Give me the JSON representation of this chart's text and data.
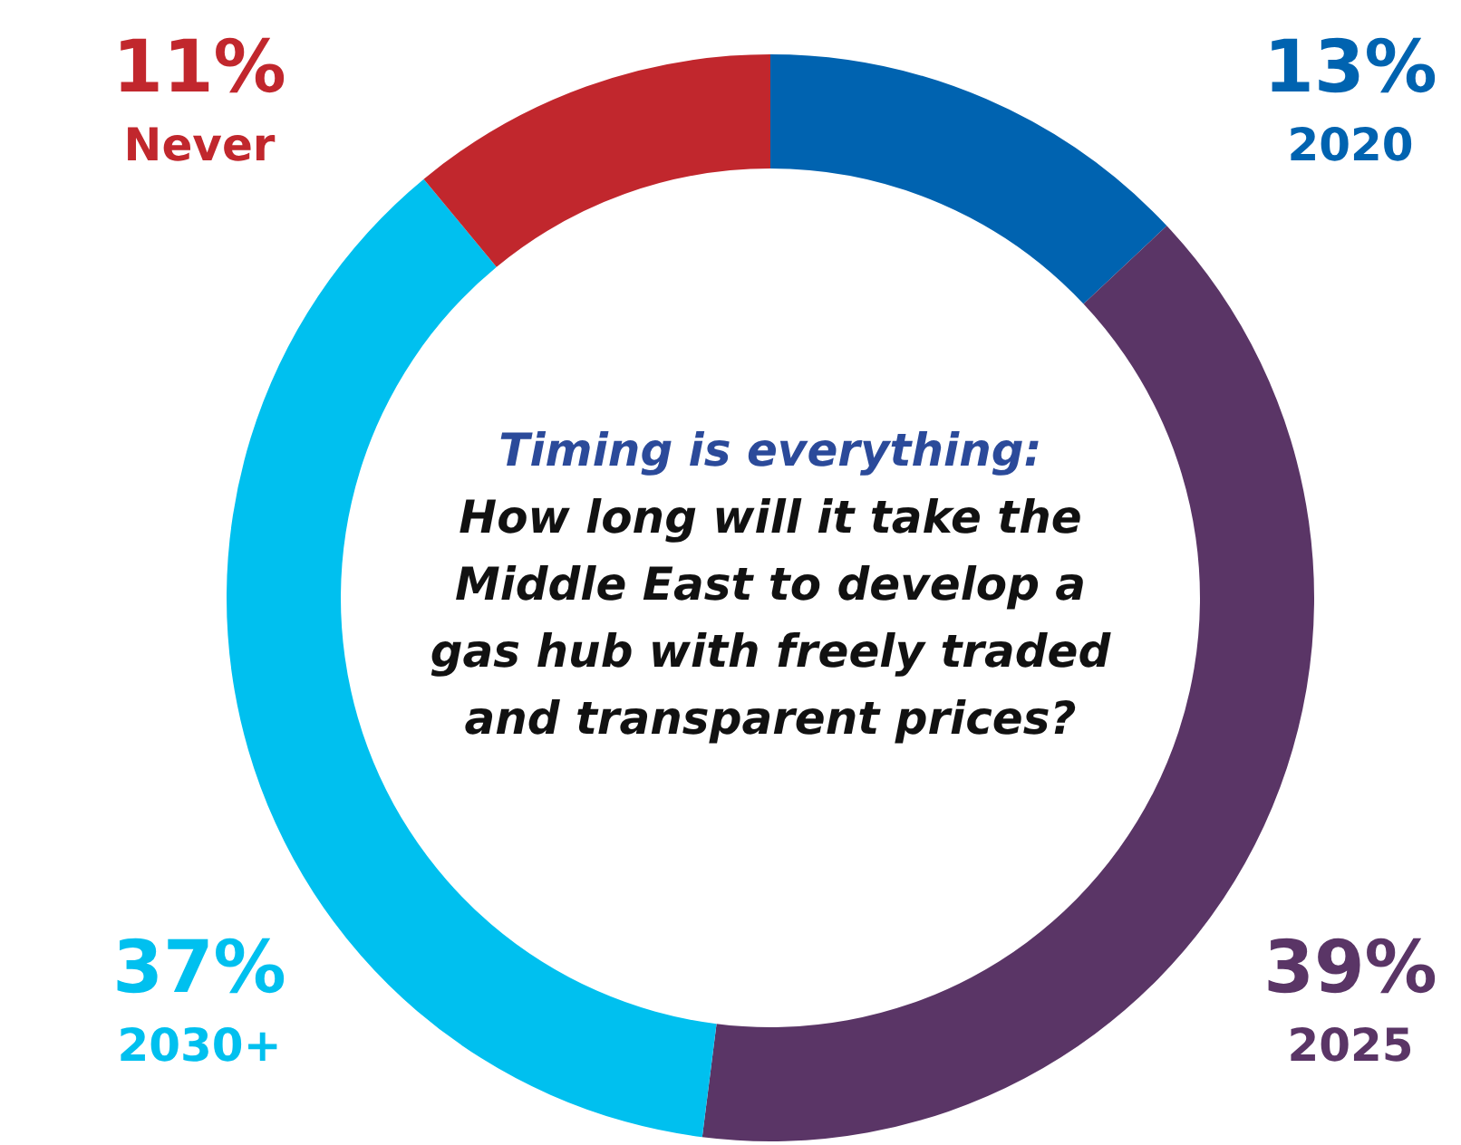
{
  "chart_data": {
    "type": "donut",
    "title": "Timing is everything:",
    "subtitle": "How long will it take the Middle East to develop a gas hub with freely traded and transparent prices?",
    "categories": [
      "2020",
      "2025",
      "2030+",
      "Never"
    ],
    "values": [
      13,
      39,
      37,
      11
    ],
    "value_labels": [
      "13%",
      "39%",
      "37%",
      "11%"
    ],
    "colors": [
      "#0063b0",
      "#5a3566",
      "#00c0ef",
      "#c1272d"
    ],
    "legend": false
  }
}
